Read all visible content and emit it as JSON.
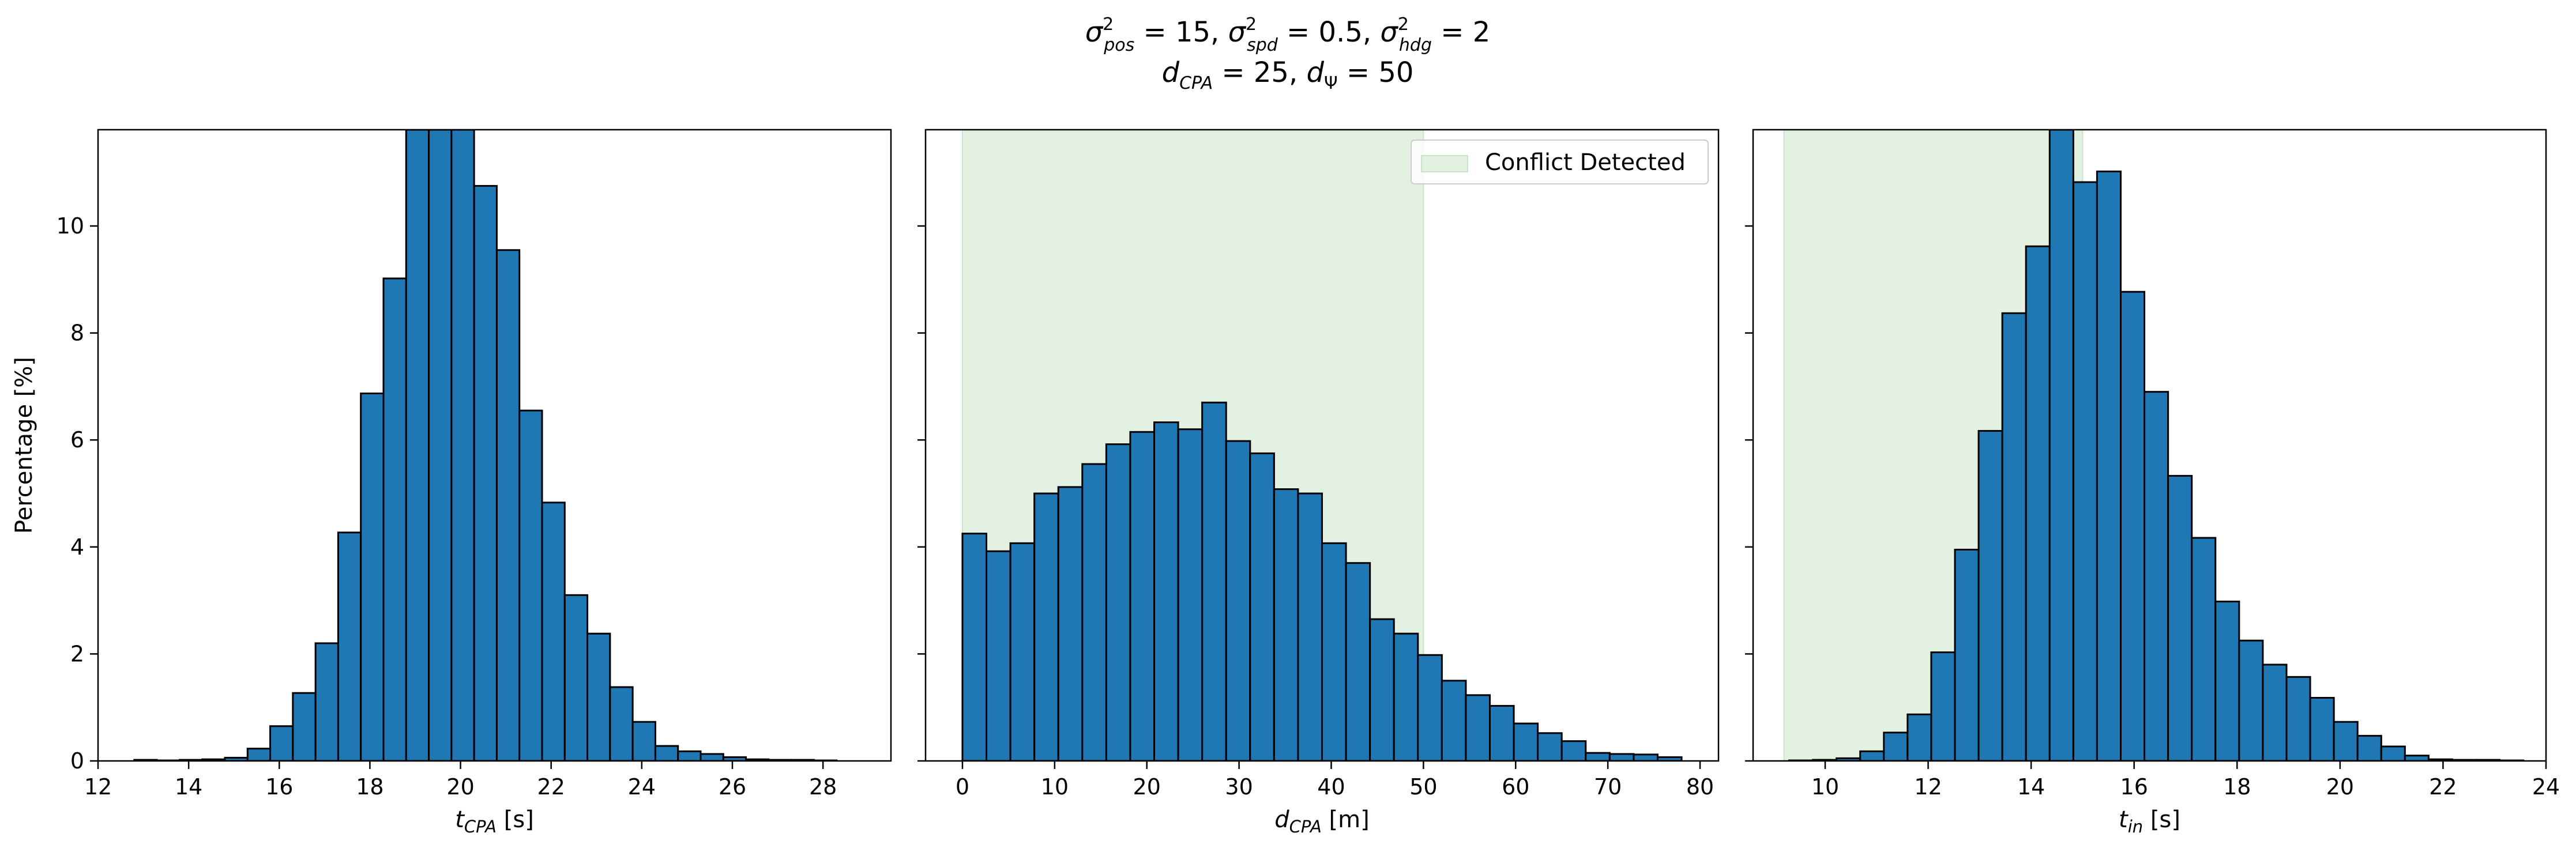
{
  "figure_title": {
    "line1": "σ²pos = 15, σ²spd = 0.5, σ²hdg = 2",
    "line2": "dCPA = 25, dΨ = 50"
  },
  "colors": {
    "bar_fill": "#1f77b4",
    "bar_edge": "#000000",
    "conflict_fill": "#c8e3c8",
    "background": "#ffffff"
  },
  "legend": {
    "label": "Conflict Detected",
    "location": "upper right",
    "panel": 2
  },
  "chart_data": [
    {
      "type": "bar",
      "panel": 1,
      "xlabel": "tCPA [s]",
      "ylabel": "Percentage [%]",
      "xlim": [
        12,
        29.5
      ],
      "ylim": [
        0,
        11.8
      ],
      "xticks": [
        12,
        14,
        16,
        18,
        20,
        22,
        24,
        26,
        28
      ],
      "yticks": [
        0,
        2,
        4,
        6,
        8,
        10
      ],
      "bin_edges": [
        12.8,
        13.3,
        13.8,
        14.3,
        14.8,
        15.3,
        15.8,
        16.3,
        16.8,
        17.3,
        17.8,
        18.3,
        18.8,
        19.3,
        19.8,
        20.3,
        20.8,
        21.3,
        21.8,
        22.3,
        22.8,
        23.3,
        23.8,
        24.3,
        24.8,
        25.3,
        25.8,
        26.3,
        26.8,
        27.3,
        27.8,
        28.3,
        28.8
      ],
      "values": [
        0.02,
        0.01,
        0.02,
        0.03,
        0.06,
        0.23,
        0.65,
        1.27,
        2.2,
        4.27,
        6.87,
        9.02,
        11.8,
        11.8,
        11.8,
        10.75,
        9.55,
        6.55,
        4.83,
        3.1,
        2.38,
        1.38,
        0.73,
        0.28,
        0.18,
        0.13,
        0.07,
        0.03,
        0.02,
        0.02,
        0.01,
        0.0
      ],
      "conflict_region": null
    },
    {
      "type": "bar",
      "panel": 2,
      "xlabel": "dCPA [m]",
      "ylabel": "",
      "xlim": [
        -4,
        82
      ],
      "ylim": [
        0,
        11.8
      ],
      "xticks": [
        0,
        10,
        20,
        30,
        40,
        50,
        60,
        70,
        80
      ],
      "yticks": [
        0,
        2,
        4,
        6,
        8,
        10
      ],
      "bin_edges": [
        0,
        2.6,
        5.2,
        7.8,
        10.4,
        13.0,
        15.6,
        18.2,
        20.8,
        23.4,
        26.0,
        28.6,
        31.2,
        33.8,
        36.4,
        39.0,
        41.6,
        44.2,
        46.8,
        49.4,
        52.0,
        54.6,
        57.2,
        59.8,
        62.4,
        65.0,
        67.6,
        70.2,
        72.8,
        75.4,
        78.0
      ],
      "values": [
        4.25,
        3.92,
        4.07,
        5.0,
        5.12,
        5.55,
        5.92,
        6.15,
        6.33,
        6.2,
        6.7,
        5.98,
        5.75,
        5.08,
        5.0,
        4.07,
        3.7,
        2.65,
        2.38,
        1.98,
        1.5,
        1.23,
        1.03,
        0.7,
        0.52,
        0.37,
        0.15,
        0.13,
        0.12,
        0.07
      ],
      "conflict_region": [
        0,
        50
      ]
    },
    {
      "type": "bar",
      "panel": 3,
      "xlabel": "tin [s]",
      "ylabel": "",
      "xlim": [
        8.6,
        24.0
      ],
      "ylim": [
        0,
        11.8
      ],
      "xticks": [
        10,
        12,
        14,
        16,
        18,
        20,
        22,
        24
      ],
      "yticks": [
        0,
        2,
        4,
        6,
        8,
        10
      ],
      "bin_edges": [
        9.3,
        9.76,
        10.22,
        10.68,
        11.14,
        11.6,
        12.06,
        12.52,
        12.98,
        13.44,
        13.9,
        14.36,
        14.82,
        15.28,
        15.74,
        16.2,
        16.66,
        17.12,
        17.58,
        18.04,
        18.5,
        18.96,
        19.42,
        19.88,
        20.34,
        20.8,
        21.26,
        21.72,
        22.18,
        22.64,
        23.1,
        23.56
      ],
      "values": [
        0.01,
        0.02,
        0.05,
        0.18,
        0.53,
        0.87,
        2.03,
        3.95,
        6.17,
        8.37,
        9.62,
        11.8,
        10.82,
        11.02,
        8.77,
        6.9,
        5.33,
        4.17,
        2.98,
        2.25,
        1.8,
        1.57,
        1.18,
        0.73,
        0.47,
        0.27,
        0.1,
        0.03,
        0.02,
        0.02,
        0.01
      ],
      "conflict_region": [
        9.2,
        15.0
      ]
    }
  ]
}
